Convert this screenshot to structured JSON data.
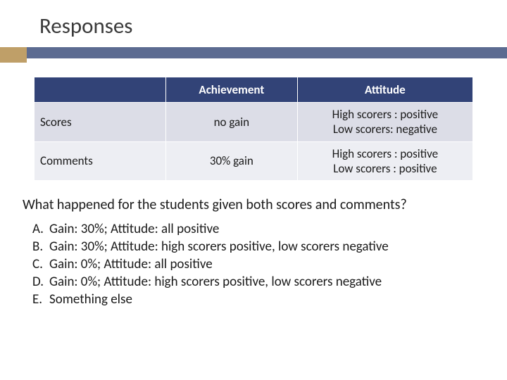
{
  "title": "Responses",
  "colors": {
    "stripe": "#5c6b91",
    "accent": "#bf9f68",
    "header_bg": "#324377",
    "header_fg": "#ffffff",
    "row1_bg": "#dcdde7",
    "row2_bg": "#edeef3",
    "text": "#1a1a1a"
  },
  "table": {
    "headers": [
      "",
      "Achievement",
      "Attitude"
    ],
    "rows": [
      {
        "label": "Scores",
        "achievement": "no gain",
        "attitude_line1": "High scorers : positive",
        "attitude_line2": "Low scorers: negative"
      },
      {
        "label": "Comments",
        "achievement": "30% gain",
        "attitude_line1": "High scorers : positive",
        "attitude_line2": "Low scorers : positive"
      }
    ]
  },
  "question": "What happened for the students given both scores and comments?",
  "options": [
    {
      "label": "A.",
      "text": "Gain: 30%; Attitude: all positive"
    },
    {
      "label": "B.",
      "text": "Gain: 30%; Attitude: high scorers positive, low scorers negative"
    },
    {
      "label": "C.",
      "text": "Gain: 0%; Attitude: all positive"
    },
    {
      "label": "D.",
      "text": "Gain: 0%; Attitude: high scorers positive, low scorers negative"
    },
    {
      "label": "E.",
      "text": "Something else"
    }
  ]
}
